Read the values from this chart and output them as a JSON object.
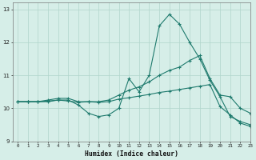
{
  "xlabel": "Humidex (Indice chaleur)",
  "bg_color": "#d6eee8",
  "grid_color": "#b0d5cb",
  "line_color": "#1e7a6d",
  "xlim": [
    -0.5,
    23
  ],
  "ylim": [
    9,
    13.2
  ],
  "yticks": [
    9,
    10,
    11,
    12,
    13
  ],
  "xticks": [
    0,
    1,
    2,
    3,
    4,
    5,
    6,
    7,
    8,
    9,
    10,
    11,
    12,
    13,
    14,
    15,
    16,
    17,
    18,
    19,
    20,
    21,
    22,
    23
  ],
  "s1_x": [
    0,
    1,
    2,
    3,
    4,
    5,
    6,
    7,
    8,
    9,
    10,
    11,
    12,
    13,
    14,
    15,
    16,
    17,
    18,
    19,
    20,
    21,
    22,
    23
  ],
  "s1_y": [
    10.2,
    10.2,
    10.2,
    10.2,
    10.25,
    10.25,
    10.1,
    9.85,
    9.75,
    9.8,
    10.0,
    10.9,
    10.5,
    11.0,
    12.5,
    12.85,
    12.55,
    12.0,
    11.5,
    10.85,
    10.35,
    9.75,
    9.6,
    9.5
  ],
  "s2_x": [
    0,
    1,
    2,
    3,
    4,
    5,
    6,
    7,
    8,
    9,
    10,
    11,
    12,
    13,
    14,
    15,
    16,
    17,
    18,
    19,
    20,
    21,
    22,
    23
  ],
  "s2_y": [
    10.2,
    10.2,
    10.2,
    10.25,
    10.3,
    10.3,
    10.2,
    10.2,
    10.2,
    10.25,
    10.4,
    10.55,
    10.65,
    10.8,
    11.0,
    11.15,
    11.25,
    11.45,
    11.6,
    10.9,
    10.4,
    10.35,
    10.0,
    9.85
  ],
  "s3_x": [
    0,
    1,
    2,
    3,
    4,
    5,
    6,
    7,
    8,
    9,
    10,
    11,
    12,
    13,
    14,
    15,
    16,
    17,
    18,
    19,
    20,
    21,
    22,
    23
  ],
  "s3_y": [
    10.2,
    10.2,
    10.2,
    10.22,
    10.25,
    10.22,
    10.18,
    10.2,
    10.18,
    10.2,
    10.28,
    10.32,
    10.37,
    10.42,
    10.48,
    10.52,
    10.57,
    10.62,
    10.67,
    10.72,
    10.05,
    9.8,
    9.55,
    9.45
  ]
}
